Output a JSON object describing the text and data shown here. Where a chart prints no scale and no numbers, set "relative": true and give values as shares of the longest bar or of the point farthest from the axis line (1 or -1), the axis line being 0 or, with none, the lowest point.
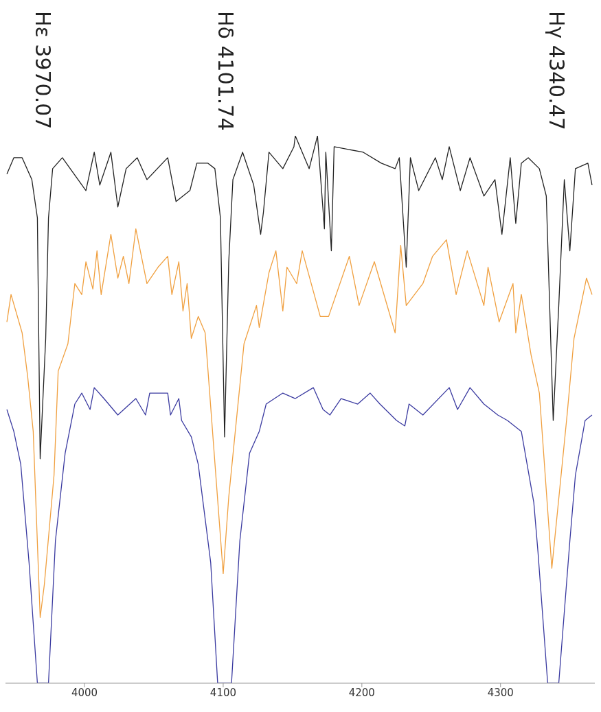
{
  "chart_data": {
    "type": "line",
    "relative": true,
    "xlim": [
      3943,
      4368
    ],
    "xticks": [
      4000,
      4100,
      4200,
      4300
    ],
    "grid": false,
    "legend": false,
    "marker": "none",
    "line_style": "solid",
    "annotations": [
      "Hε 3970.07",
      "Hδ 4101.74",
      "Hγ 4340.47"
    ],
    "series": [
      {
        "color": "#222222",
        "x": [
          3944,
          3949,
          3955,
          3962,
          3966,
          3968,
          3972,
          3974,
          3977,
          3984,
          4001,
          4007,
          4011,
          4019,
          4024,
          4030,
          4038,
          4045,
          4060,
          4066,
          4076,
          4081,
          4089,
          4094,
          4098,
          4101,
          4104,
          4107,
          4114,
          4122,
          4127,
          4129,
          4133,
          4143,
          4151,
          4152,
          4162,
          4168,
          4173,
          4174,
          4178,
          4180,
          4201,
          4214,
          4224,
          4227,
          4232,
          4235,
          4241,
          4253,
          4258,
          4263,
          4271,
          4278,
          4288,
          4296,
          4301,
          4307,
          4311,
          4315,
          4320,
          4328,
          4333,
          4338,
          4342,
          4346,
          4350,
          4354,
          4363,
          4366
        ],
        "values": [
          0.93,
          0.96,
          0.96,
          0.92,
          0.85,
          0.41,
          0.63,
          0.85,
          0.94,
          0.96,
          0.9,
          0.97,
          0.91,
          0.97,
          0.87,
          0.94,
          0.96,
          0.92,
          0.96,
          0.88,
          0.9,
          0.95,
          0.95,
          0.94,
          0.85,
          0.45,
          0.77,
          0.92,
          0.97,
          0.91,
          0.82,
          0.86,
          0.97,
          0.94,
          0.98,
          1.0,
          0.94,
          1.0,
          0.83,
          0.97,
          0.79,
          0.98,
          0.97,
          0.95,
          0.94,
          0.96,
          0.76,
          0.96,
          0.9,
          0.96,
          0.92,
          0.98,
          0.9,
          0.96,
          0.89,
          0.92,
          0.82,
          0.96,
          0.84,
          0.95,
          0.96,
          0.94,
          0.89,
          0.48,
          0.69,
          0.92,
          0.79,
          0.94,
          0.95,
          0.91
        ]
      },
      {
        "color": "#f0a040",
        "x": [
          3944,
          3947,
          3955,
          3959,
          3963,
          3968,
          3971,
          3978,
          3981,
          3988,
          3993,
          3998,
          4001,
          4006,
          4009,
          4012,
          4019,
          4024,
          4028,
          4032,
          4037,
          4045,
          4053,
          4060,
          4063,
          4068,
          4071,
          4074,
          4077,
          4082,
          4087,
          4100,
          4104,
          4115,
          4124,
          4126,
          4133,
          4138,
          4143,
          4146,
          4153,
          4157,
          4170,
          4176,
          4191,
          4198,
          4209,
          4224,
          4228,
          4232,
          4244,
          4251,
          4261,
          4268,
          4276,
          4288,
          4291,
          4299,
          4309,
          4311,
          4315,
          4322,
          4328,
          4337,
          4348,
          4353,
          4362,
          4366
        ],
        "values": [
          0.66,
          0.71,
          0.64,
          0.56,
          0.46,
          0.12,
          0.18,
          0.38,
          0.57,
          0.62,
          0.73,
          0.71,
          0.77,
          0.72,
          0.79,
          0.71,
          0.82,
          0.74,
          0.78,
          0.73,
          0.83,
          0.73,
          0.76,
          0.78,
          0.71,
          0.77,
          0.68,
          0.73,
          0.63,
          0.67,
          0.64,
          0.2,
          0.34,
          0.62,
          0.69,
          0.65,
          0.75,
          0.79,
          0.68,
          0.76,
          0.73,
          0.79,
          0.67,
          0.67,
          0.78,
          0.69,
          0.77,
          0.64,
          0.8,
          0.69,
          0.73,
          0.78,
          0.81,
          0.71,
          0.79,
          0.69,
          0.76,
          0.66,
          0.73,
          0.64,
          0.71,
          0.6,
          0.53,
          0.21,
          0.49,
          0.63,
          0.74,
          0.71
        ]
      },
      {
        "color": "#3a3aa0",
        "x": [
          3944,
          3949,
          3954,
          3960,
          3966,
          3974,
          3979,
          3986,
          3993,
          3998,
          4004,
          4007,
          4014,
          4024,
          4037,
          4044,
          4047,
          4060,
          4062,
          4068,
          4070,
          4077,
          4082,
          4091,
          4096,
          4106,
          4112,
          4119,
          4126,
          4131,
          4143,
          4152,
          4165,
          4172,
          4177,
          4185,
          4197,
          4206,
          4213,
          4225,
          4231,
          4234,
          4244,
          4263,
          4269,
          4278,
          4288,
          4298,
          4305,
          4315,
          4324,
          4327,
          4334,
          4342,
          4350,
          4354,
          4361,
          4366
        ],
        "values": [
          0.5,
          0.46,
          0.4,
          0.22,
          0,
          0,
          0.26,
          0.42,
          0.51,
          0.53,
          0.5,
          0.54,
          0.52,
          0.49,
          0.52,
          0.49,
          0.53,
          0.53,
          0.49,
          0.52,
          0.48,
          0.45,
          0.4,
          0.22,
          0,
          0,
          0.26,
          0.42,
          0.46,
          0.51,
          0.53,
          0.52,
          0.54,
          0.5,
          0.49,
          0.52,
          0.51,
          0.53,
          0.51,
          0.48,
          0.47,
          0.51,
          0.49,
          0.54,
          0.5,
          0.54,
          0.51,
          0.49,
          0.48,
          0.46,
          0.33,
          0.24,
          0,
          0,
          0.26,
          0.38,
          0.48,
          0.49
        ]
      }
    ]
  }
}
